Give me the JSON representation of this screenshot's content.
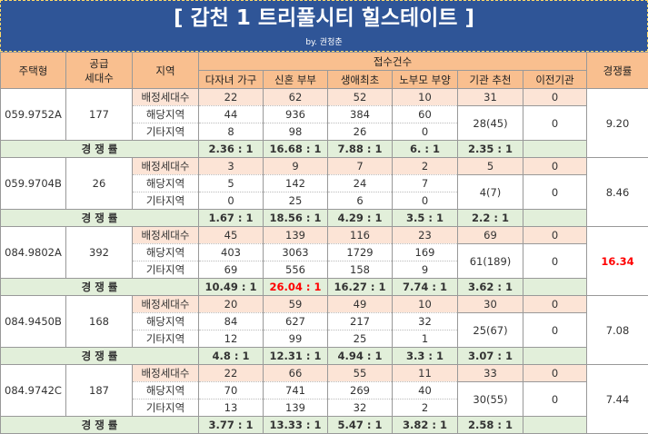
{
  "title": "[ 갑천 1 트리풀시티 힐스테이트 ]",
  "subtitle": "by. 권청춘",
  "header": {
    "type": "주택형",
    "supply": "공급\n세대수",
    "region": "지역",
    "applications": "접수건수",
    "columns": [
      "다자녀 가구",
      "신혼 부부",
      "생애최초",
      "노부모 부양",
      "기관 추천",
      "이전기관"
    ],
    "rate": "경쟁률"
  },
  "row_labels": [
    "배정세대수",
    "해당지역",
    "기타지역"
  ],
  "rate_label": "경 쟁 률",
  "groups": [
    {
      "type": "059.9752A",
      "supply": 177,
      "allocated": [
        22,
        62,
        52,
        10,
        31,
        0
      ],
      "local": [
        44,
        936,
        384,
        60
      ],
      "other": [
        8,
        98,
        26,
        0
      ],
      "agency": "28(45)",
      "transfer": 0,
      "total": "9.20",
      "rates": [
        "2.36 : 1",
        "16.68 : 1",
        "7.88 : 1",
        "6. : 1",
        "2.35 : 1"
      ]
    },
    {
      "type": "059.9704B",
      "supply": 26,
      "allocated": [
        3,
        9,
        7,
        2,
        5,
        0
      ],
      "local": [
        5,
        142,
        24,
        7
      ],
      "other": [
        0,
        25,
        6,
        0
      ],
      "agency": "4(7)",
      "transfer": 0,
      "total": "8.46",
      "rates": [
        "1.67 : 1",
        "18.56 : 1",
        "4.29 : 1",
        "3.5 : 1",
        "2.2 : 1"
      ]
    },
    {
      "type": "084.9802A",
      "supply": 392,
      "allocated": [
        45,
        139,
        116,
        23,
        69,
        0
      ],
      "local": [
        403,
        3063,
        1729,
        169
      ],
      "other": [
        69,
        556,
        158,
        9
      ],
      "agency": "61(189)",
      "transfer": 0,
      "total": "16.34",
      "total_color": "#ff0000",
      "rates": [
        "10.49 : 1",
        "26.04 : 1",
        "16.27 : 1",
        "7.74 : 1",
        "3.62 : 1"
      ],
      "rate_colors": [
        null,
        "#ff0000",
        null,
        null,
        null
      ]
    },
    {
      "type": "084.9450B",
      "supply": 168,
      "allocated": [
        20,
        59,
        49,
        10,
        30,
        0
      ],
      "local": [
        84,
        627,
        217,
        32
      ],
      "other": [
        12,
        99,
        25,
        1
      ],
      "agency": "25(67)",
      "transfer": 0,
      "total": "7.08",
      "rates": [
        "4.8 : 1",
        "12.31 : 1",
        "4.94 : 1",
        "3.3 : 1",
        "3.07 : 1"
      ]
    },
    {
      "type": "084.9742C",
      "supply": 187,
      "allocated": [
        22,
        66,
        55,
        11,
        33,
        0
      ],
      "local": [
        70,
        741,
        269,
        40
      ],
      "other": [
        13,
        139,
        32,
        2
      ],
      "agency": "30(55)",
      "transfer": 0,
      "total": "7.44",
      "rates": [
        "3.77 : 1",
        "13.33 : 1",
        "5.47 : 1",
        "3.82 : 1",
        "2.58 : 1"
      ]
    }
  ]
}
